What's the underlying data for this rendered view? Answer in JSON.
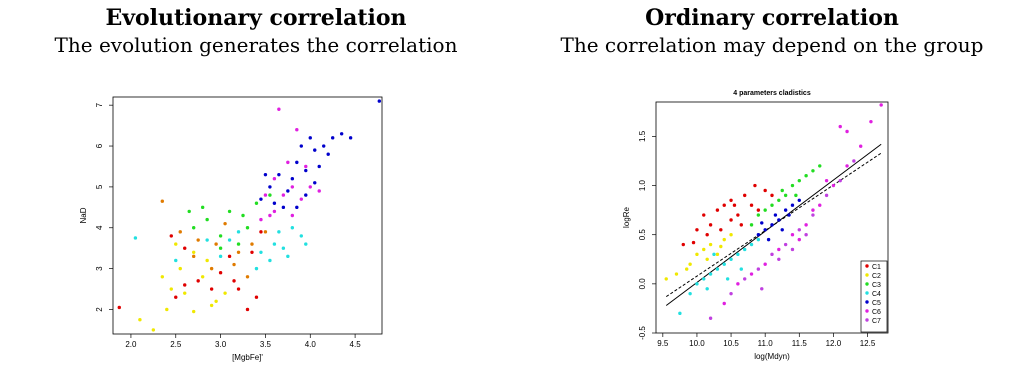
{
  "panels": {
    "left": {
      "heading": "Evolutionary correlation",
      "subheading": "The evolution generates the correlation"
    },
    "right": {
      "heading": "Ordinary correlation",
      "subheading": "The correlation may depend on the group"
    }
  },
  "colors": {
    "C1": "#e00000",
    "C2": "#f0e800",
    "C3": "#22dd22",
    "C4": "#22e0e0",
    "C5": "#0000cc",
    "C6": "#e020e0",
    "C7": "#c040e0",
    "other": "#e07b00",
    "extra_blue": "#0000cc"
  },
  "chart_data": [
    {
      "type": "scatter",
      "title": "",
      "xlabel": "[MgbFe]'",
      "ylabel": "NaD",
      "xlim": [
        1.8,
        4.8
      ],
      "ylim": [
        1.4,
        7.2
      ],
      "xticks": [
        "2.0",
        "2.5",
        "3.0",
        "3.5",
        "4.0",
        "4.5"
      ],
      "xtick_values": [
        2.0,
        2.5,
        3.0,
        3.5,
        4.0,
        4.5
      ],
      "yticks": [
        "2",
        "3",
        "4",
        "5",
        "6",
        "7"
      ],
      "ytick_values": [
        2,
        3,
        4,
        5,
        6,
        7
      ],
      "grid": false,
      "legend": "none",
      "series": [
        {
          "color": "#e00000",
          "points": [
            [
              1.87,
              2.05
            ],
            [
              2.5,
              2.3
            ],
            [
              2.6,
              2.6
            ],
            [
              2.75,
              2.7
            ],
            [
              2.9,
              2.5
            ],
            [
              3.0,
              2.9
            ],
            [
              3.15,
              2.7
            ],
            [
              3.3,
              2.0
            ],
            [
              3.35,
              3.4
            ],
            [
              3.45,
              3.9
            ],
            [
              3.1,
              3.3
            ],
            [
              2.45,
              3.8
            ],
            [
              2.6,
              3.5
            ],
            [
              3.2,
              2.5
            ],
            [
              3.4,
              2.3
            ]
          ]
        },
        {
          "color": "#f0e800",
          "points": [
            [
              2.1,
              1.75
            ],
            [
              2.25,
              1.5
            ],
            [
              2.4,
              2.0
            ],
            [
              2.6,
              2.4
            ],
            [
              2.55,
              3.0
            ],
            [
              2.7,
              3.4
            ],
            [
              2.8,
              2.8
            ],
            [
              2.95,
              2.2
            ],
            [
              2.5,
              3.6
            ],
            [
              2.35,
              2.8
            ],
            [
              2.45,
              2.5
            ],
            [
              2.85,
              3.2
            ],
            [
              3.05,
              2.4
            ],
            [
              2.7,
              1.95
            ],
            [
              2.9,
              2.1
            ]
          ]
        },
        {
          "color": "#22dd22",
          "points": [
            [
              2.7,
              4.0
            ],
            [
              2.85,
              4.2
            ],
            [
              3.0,
              3.8
            ],
            [
              3.1,
              4.4
            ],
            [
              3.2,
              3.6
            ],
            [
              3.3,
              4.0
            ],
            [
              2.8,
              4.5
            ],
            [
              3.4,
              4.6
            ],
            [
              2.65,
              4.4
            ],
            [
              3.55,
              4.8
            ],
            [
              3.25,
              4.3
            ],
            [
              3.0,
              3.5
            ]
          ]
        },
        {
          "color": "#22e0e0",
          "points": [
            [
              2.05,
              3.75
            ],
            [
              2.5,
              3.2
            ],
            [
              3.0,
              3.3
            ],
            [
              3.2,
              3.9
            ],
            [
              3.4,
              3.0
            ],
            [
              3.6,
              3.6
            ],
            [
              3.7,
              3.5
            ],
            [
              3.8,
              4.0
            ],
            [
              3.9,
              3.8
            ],
            [
              3.45,
              3.4
            ],
            [
              3.55,
              3.2
            ],
            [
              3.75,
              3.3
            ],
            [
              3.1,
              3.7
            ],
            [
              2.85,
              3.7
            ],
            [
              3.65,
              3.9
            ],
            [
              3.95,
              3.6
            ]
          ]
        },
        {
          "color": "#0000cc",
          "points": [
            [
              3.45,
              4.7
            ],
            [
              3.55,
              5.0
            ],
            [
              3.65,
              5.3
            ],
            [
              3.75,
              4.9
            ],
            [
              3.85,
              5.6
            ],
            [
              3.95,
              5.4
            ],
            [
              4.05,
              5.9
            ],
            [
              4.15,
              6.0
            ],
            [
              4.25,
              6.2
            ],
            [
              4.35,
              6.3
            ],
            [
              4.45,
              6.2
            ],
            [
              4.77,
              7.1
            ],
            [
              4.0,
              6.2
            ],
            [
              3.9,
              6.0
            ],
            [
              4.1,
              5.5
            ],
            [
              3.7,
              4.5
            ],
            [
              3.6,
              4.6
            ],
            [
              3.8,
              5.2
            ],
            [
              4.2,
              5.8
            ],
            [
              3.5,
              5.3
            ],
            [
              3.95,
              4.8
            ],
            [
              4.05,
              5.1
            ],
            [
              3.85,
              4.5
            ]
          ]
        },
        {
          "color": "#e020e0",
          "points": [
            [
              3.5,
              4.8
            ],
            [
              3.6,
              4.4
            ],
            [
              3.7,
              4.8
            ],
            [
              3.8,
              5.0
            ],
            [
              3.9,
              4.7
            ],
            [
              4.0,
              5.0
            ],
            [
              3.65,
              6.9
            ],
            [
              3.85,
              6.4
            ],
            [
              3.95,
              5.5
            ],
            [
              3.75,
              5.6
            ],
            [
              3.55,
              4.3
            ],
            [
              4.1,
              4.9
            ],
            [
              3.45,
              4.2
            ],
            [
              3.6,
              5.2
            ],
            [
              3.8,
              4.3
            ]
          ]
        },
        {
          "color": "#e07b00",
          "points": [
            [
              2.35,
              4.65
            ],
            [
              2.55,
              3.9
            ],
            [
              2.7,
              3.3
            ],
            [
              2.95,
              3.6
            ],
            [
              3.15,
              3.1
            ],
            [
              3.05,
              4.1
            ],
            [
              3.5,
              3.9
            ],
            [
              3.35,
              3.6
            ],
            [
              2.75,
              3.7
            ],
            [
              3.2,
              3.4
            ],
            [
              3.3,
              2.8
            ],
            [
              2.9,
              3.0
            ]
          ]
        }
      ]
    },
    {
      "type": "scatter",
      "title": "4 parameters cladistics",
      "xlabel": "log(Mdyn)",
      "ylabel": "logRe",
      "xlim": [
        9.4,
        12.8
      ],
      "ylim": [
        -0.5,
        1.85
      ],
      "xticks": [
        "9.5",
        "10.0",
        "10.5",
        "11.0",
        "11.5",
        "12.0",
        "12.5"
      ],
      "xtick_values": [
        9.5,
        10.0,
        10.5,
        11.0,
        11.5,
        12.0,
        12.5
      ],
      "yticks": [
        "-0.5",
        "0.0",
        "0.5",
        "1.0",
        "1.5"
      ],
      "ytick_values": [
        -0.5,
        0.0,
        0.5,
        1.0,
        1.5
      ],
      "grid": false,
      "legend": "bottom-right",
      "lines": [
        {
          "style": "solid",
          "x": [
            9.55,
            12.7
          ],
          "y": [
            -0.22,
            1.42
          ]
        },
        {
          "style": "dashed",
          "x": [
            9.55,
            12.7
          ],
          "y": [
            -0.13,
            1.33
          ]
        }
      ],
      "series": [
        {
          "name": "C1",
          "color": "#e00000",
          "points": [
            [
              9.8,
              0.4
            ],
            [
              10.0,
              0.55
            ],
            [
              10.1,
              0.7
            ],
            [
              10.2,
              0.6
            ],
            [
              10.3,
              0.75
            ],
            [
              10.4,
              0.8
            ],
            [
              10.5,
              0.85
            ],
            [
              10.6,
              0.7
            ],
            [
              10.7,
              0.9
            ],
            [
              10.8,
              0.8
            ],
            [
              10.9,
              0.75
            ],
            [
              11.0,
              0.95
            ],
            [
              10.5,
              0.65
            ],
            [
              10.35,
              0.55
            ],
            [
              10.65,
              0.6
            ],
            [
              10.15,
              0.5
            ],
            [
              10.85,
              1.0
            ],
            [
              11.1,
              0.9
            ],
            [
              10.55,
              0.8
            ],
            [
              9.95,
              0.42
            ]
          ]
        },
        {
          "name": "C2",
          "color": "#f0e800",
          "points": [
            [
              9.55,
              0.05
            ],
            [
              9.7,
              0.1
            ],
            [
              9.9,
              0.2
            ],
            [
              10.0,
              0.3
            ],
            [
              10.1,
              0.35
            ],
            [
              10.2,
              0.4
            ],
            [
              10.3,
              0.3
            ],
            [
              10.4,
              0.45
            ],
            [
              10.5,
              0.5
            ],
            [
              10.15,
              0.25
            ],
            [
              9.85,
              0.15
            ],
            [
              10.35,
              0.38
            ]
          ]
        },
        {
          "name": "C3",
          "color": "#22dd22",
          "points": [
            [
              10.8,
              0.6
            ],
            [
              10.9,
              0.7
            ],
            [
              11.0,
              0.75
            ],
            [
              11.1,
              0.8
            ],
            [
              11.2,
              0.85
            ],
            [
              11.3,
              0.9
            ],
            [
              11.4,
              1.0
            ],
            [
              11.5,
              1.05
            ],
            [
              11.6,
              1.1
            ],
            [
              11.7,
              1.15
            ],
            [
              11.8,
              1.2
            ],
            [
              11.25,
              0.95
            ],
            [
              11.45,
              0.9
            ]
          ]
        },
        {
          "name": "C4",
          "color": "#22e0e0",
          "points": [
            [
              9.75,
              -0.3
            ],
            [
              9.9,
              -0.1
            ],
            [
              10.0,
              0.0
            ],
            [
              10.1,
              0.05
            ],
            [
              10.2,
              0.1
            ],
            [
              10.3,
              0.15
            ],
            [
              10.4,
              0.2
            ],
            [
              10.5,
              0.25
            ],
            [
              10.6,
              0.3
            ],
            [
              10.7,
              0.35
            ],
            [
              10.8,
              0.4
            ],
            [
              10.15,
              -0.05
            ],
            [
              10.45,
              0.05
            ],
            [
              10.65,
              0.15
            ],
            [
              10.9,
              0.45
            ],
            [
              10.25,
              0.3
            ]
          ]
        },
        {
          "name": "C5",
          "color": "#0000cc",
          "points": [
            [
              10.9,
              0.5
            ],
            [
              11.0,
              0.55
            ],
            [
              11.1,
              0.6
            ],
            [
              11.2,
              0.65
            ],
            [
              11.3,
              0.75
            ],
            [
              11.4,
              0.8
            ],
            [
              11.5,
              0.85
            ],
            [
              11.05,
              0.45
            ],
            [
              11.15,
              0.7
            ],
            [
              11.35,
              0.7
            ],
            [
              10.95,
              0.62
            ],
            [
              11.25,
              0.55
            ]
          ]
        },
        {
          "name": "C6",
          "color": "#e020e0",
          "points": [
            [
              10.4,
              -0.2
            ],
            [
              10.6,
              0.0
            ],
            [
              10.8,
              0.1
            ],
            [
              11.0,
              0.2
            ],
            [
              11.2,
              0.35
            ],
            [
              11.4,
              0.5
            ],
            [
              11.6,
              0.6
            ],
            [
              11.8,
              0.8
            ],
            [
              12.0,
              1.0
            ],
            [
              12.2,
              1.2
            ],
            [
              12.4,
              1.4
            ],
            [
              12.7,
              1.82
            ],
            [
              12.1,
              1.6
            ],
            [
              12.2,
              1.55
            ],
            [
              12.55,
              1.65
            ],
            [
              11.9,
              1.05
            ],
            [
              11.7,
              0.75
            ],
            [
              11.5,
              0.45
            ]
          ]
        },
        {
          "name": "C7",
          "color": "#c040e0",
          "points": [
            [
              10.2,
              -0.35
            ],
            [
              10.5,
              -0.1
            ],
            [
              10.7,
              0.05
            ],
            [
              10.9,
              0.15
            ],
            [
              11.1,
              0.3
            ],
            [
              11.3,
              0.4
            ],
            [
              11.5,
              0.55
            ],
            [
              11.7,
              0.7
            ],
            [
              11.9,
              0.9
            ],
            [
              12.1,
              1.05
            ],
            [
              11.2,
              0.25
            ],
            [
              10.95,
              -0.05
            ],
            [
              11.6,
              0.5
            ],
            [
              12.3,
              1.25
            ],
            [
              11.4,
              0.35
            ]
          ]
        }
      ]
    }
  ]
}
